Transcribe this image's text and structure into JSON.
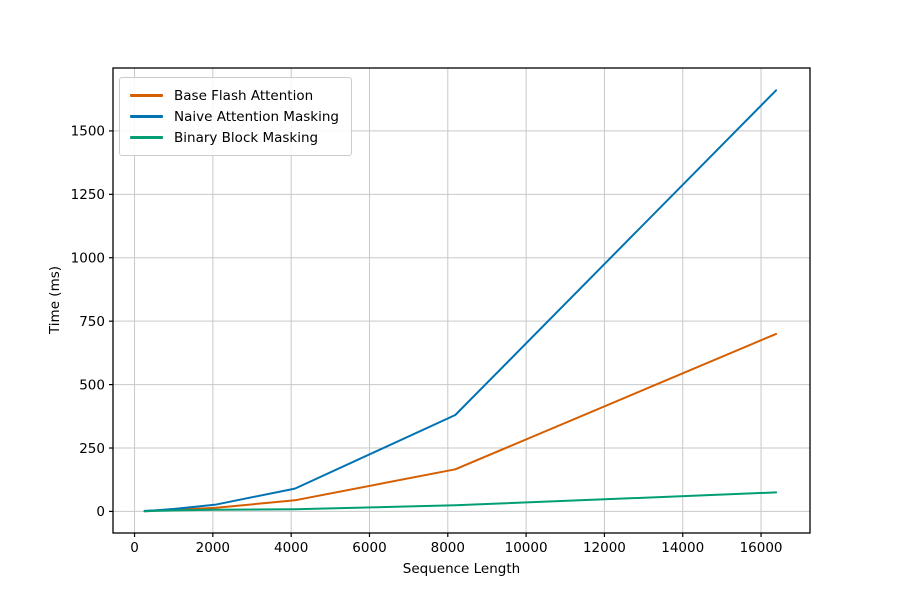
{
  "chart_data": {
    "type": "line",
    "title": "",
    "xlabel": "Sequence Length",
    "ylabel": "Time (ms)",
    "x": [
      256,
      512,
      1024,
      2048,
      4096,
      8192,
      16384
    ],
    "series": [
      {
        "name": "Base Flash Attention",
        "color": "#D55E00",
        "values": [
          1,
          3,
          7,
          14,
          44,
          166,
          700
        ]
      },
      {
        "name": "Naive Attention Masking",
        "color": "#0173B2",
        "values": [
          2,
          4,
          10,
          26,
          90,
          380,
          1660
        ]
      },
      {
        "name": "Binary Block Masking",
        "color": "#029E73",
        "values": [
          1,
          2,
          4,
          7,
          9,
          24,
          75
        ]
      }
    ],
    "xticks": [
      0,
      2000,
      4000,
      6000,
      8000,
      10000,
      12000,
      14000,
      16000
    ],
    "yticks": [
      0,
      250,
      500,
      750,
      1000,
      1250,
      1500
    ],
    "xlim": [
      -550,
      17250
    ],
    "ylim": [
      -85,
      1748
    ],
    "grid": true,
    "legend_position": "upper-left"
  },
  "colors": {
    "background": "#ffffff",
    "grid": "#c9c9c9",
    "spine": "#000000",
    "tick": "#000000",
    "text": "#000000",
    "legend_border": "#cccccc"
  }
}
